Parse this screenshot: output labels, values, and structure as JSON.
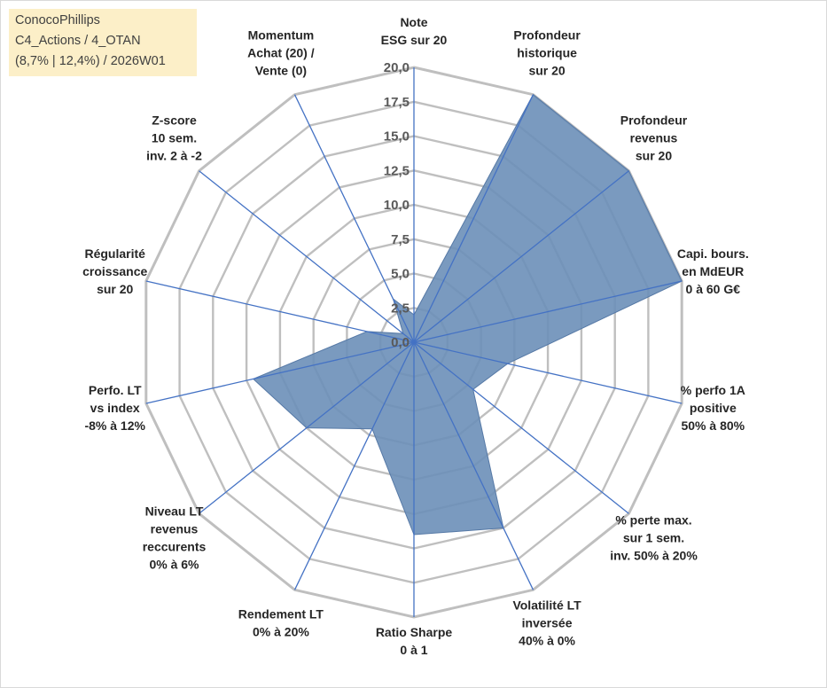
{
  "title_box": {
    "line1": "ConocoPhillips",
    "line2": "C4_Actions / 4_OTAN",
    "line3": "(8,7% | 12,4%) / 2026W01"
  },
  "chart_data": {
    "type": "radar",
    "title": "ConocoPhillips",
    "axes": [
      [
        "Note",
        "ESG sur 20"
      ],
      [
        "Profondeur",
        "historique",
        "sur 20"
      ],
      [
        "Profondeur",
        "revenus",
        "sur 20"
      ],
      [
        "Capi. bours.",
        "en MdEUR",
        "0 à 60 G€"
      ],
      [
        "% perfo 1A",
        "positive",
        "50% à 80%"
      ],
      [
        "% perte max.",
        "sur 1 sem.",
        "inv. 50% à 20%"
      ],
      [
        "Volatilité LT",
        "inversée",
        "40% à 0%"
      ],
      [
        "Ratio Sharpe",
        "0 à 1"
      ],
      [
        "Rendement LT",
        "0% à 20%"
      ],
      [
        "Niveau LT",
        "revenus",
        "reccurents",
        "0% à 6%"
      ],
      [
        "Perfo. LT",
        "vs index",
        "-8% à 12%"
      ],
      [
        "Régularité",
        "croissance",
        "sur 20"
      ],
      [
        "Z-score",
        "10 sem.",
        "inv. 2 à -2"
      ],
      [
        "Momentum",
        "Achat (20) /",
        "Vente (0)"
      ]
    ],
    "values": [
      2.0,
      20.0,
      20.0,
      20.0,
      7.0,
      5.5,
      15.0,
      14.0,
      7.0,
      10.0,
      12.0,
      3.5,
      1.0,
      3.5
    ],
    "range": [
      0,
      20
    ],
    "ticks": [
      "0,0",
      "2,5",
      "5,0",
      "7,5",
      "10,0",
      "12,5",
      "15,0",
      "17,5",
      "20,0"
    ],
    "series_color": "#6b8fb8",
    "series_fill_opacity": 0.9,
    "series_edge": "#5679a6",
    "spoke_color": "#4472c4",
    "grid_color": "#bfbfbf",
    "grid_outer_color": "#bfbfbf"
  }
}
